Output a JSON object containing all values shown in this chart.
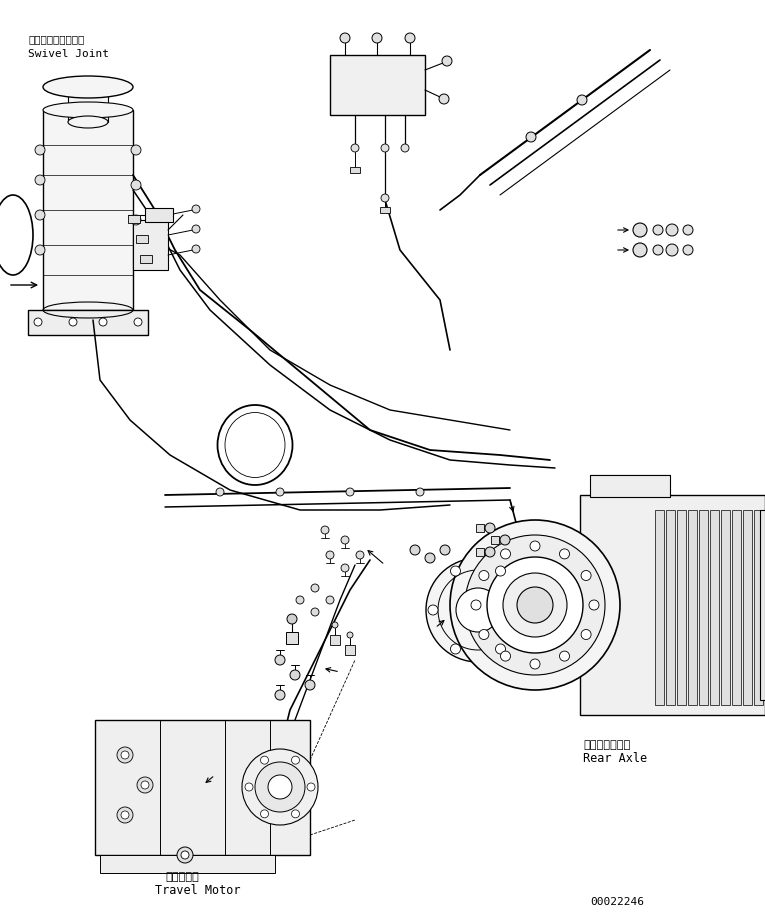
{
  "bg_color": "#ffffff",
  "line_color": "#000000",
  "fig_width": 7.65,
  "fig_height": 9.19,
  "dpi": 100,
  "labels": {
    "swivel_joint_jp": "スイベルジョイント",
    "swivel_joint_en": "Swivel Joint",
    "rear_axle_jp": "リヤーアクスル",
    "rear_axle_en": "Rear Axle",
    "travel_motor_jp": "走行モータ",
    "travel_motor_en": "Travel Motor",
    "doc_number": "00022246"
  }
}
